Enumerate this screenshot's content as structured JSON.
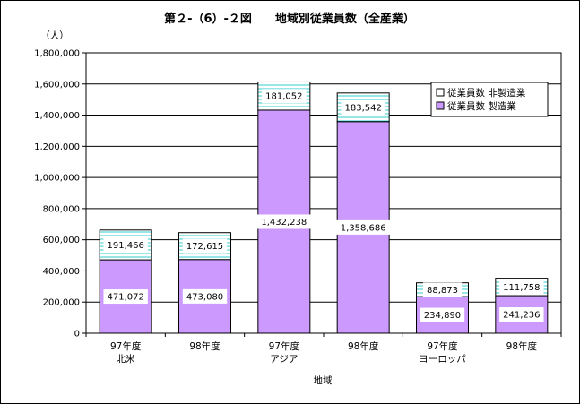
{
  "chart_data": {
    "type": "bar",
    "stacked": true,
    "title": "第２-（6）-２図　　地域別従業員数（全産業）",
    "ylabel": "（人）",
    "xlabel": "地域",
    "ylim": [
      0,
      1800000
    ],
    "yticks": [
      "0",
      "200,000",
      "400,000",
      "600,000",
      "800,000",
      "1,000,000",
      "1,200,000",
      "1,400,000",
      "1,600,000",
      "1,800,000"
    ],
    "grid": true,
    "legend_position": "top-right",
    "categories": [
      [
        "97年度",
        "北米"
      ],
      [
        "98年度",
        ""
      ],
      [
        "97年度",
        "アジア"
      ],
      [
        "98年度",
        ""
      ],
      [
        "97年度",
        "ヨーロッパ"
      ],
      [
        "98年度",
        ""
      ]
    ],
    "series": [
      {
        "name": "従業員数 製造業",
        "color": "#cc99ff",
        "values": [
          471072,
          473080,
          1432238,
          1358686,
          234890,
          241236
        ],
        "labels": [
          "471,072",
          "473,080",
          "1,432,238",
          "1,358,686",
          "234,890",
          "241,236"
        ]
      },
      {
        "name": "従業員数 非製造業",
        "color": "#ffffff",
        "hatch": "#33cccc",
        "values": [
          191466,
          172615,
          181052,
          183542,
          88873,
          111758
        ],
        "labels": [
          "191,466",
          "172,615",
          "181,052",
          "183,542",
          "88,873",
          "111,758"
        ]
      }
    ]
  }
}
